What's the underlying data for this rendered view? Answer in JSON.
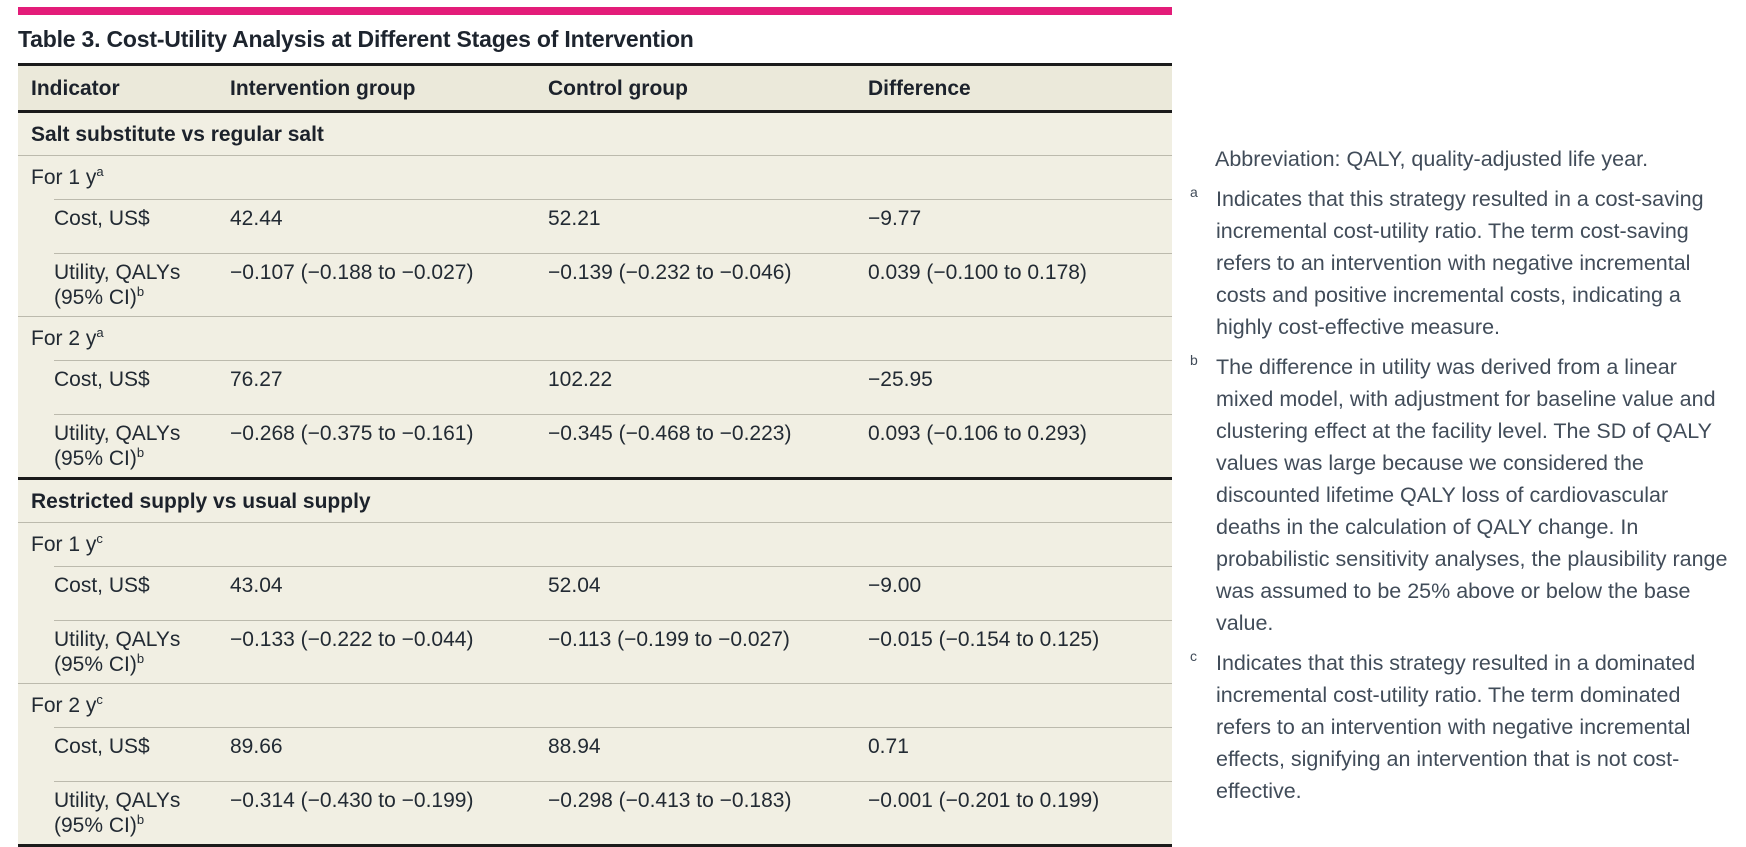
{
  "accent": {
    "bar_color": "#e31c79"
  },
  "table": {
    "title": "Table 3. Cost-Utility Analysis at Different Stages of Intervention",
    "columns": [
      "Indicator",
      "Intervention group",
      "Control group",
      "Difference"
    ],
    "sections": [
      {
        "heading": "Salt substitute vs regular salt",
        "periods": [
          {
            "label": "For 1 y",
            "sup": "a",
            "rows": [
              {
                "label": "Cost, US$",
                "sup": "",
                "values": [
                  "42.44",
                  "52.21",
                  "−9.77"
                ]
              },
              {
                "label": "Utility, QALYs (95% CI)",
                "sup": "b",
                "values": [
                  "−0.107 (−0.188 to −0.027)",
                  "−0.139 (−0.232 to −0.046)",
                  "0.039 (−0.100 to 0.178)"
                ]
              }
            ]
          },
          {
            "label": "For 2 y",
            "sup": "a",
            "rows": [
              {
                "label": "Cost, US$",
                "sup": "",
                "values": [
                  "76.27",
                  "102.22",
                  "−25.95"
                ]
              },
              {
                "label": "Utility, QALYs (95% CI)",
                "sup": "b",
                "values": [
                  "−0.268 (−0.375 to −0.161)",
                  "−0.345 (−0.468 to −0.223)",
                  "0.093 (−0.106 to 0.293)"
                ]
              }
            ]
          }
        ]
      },
      {
        "heading": "Restricted supply vs usual supply",
        "periods": [
          {
            "label": "For 1 y",
            "sup": "c",
            "rows": [
              {
                "label": "Cost, US$",
                "sup": "",
                "values": [
                  "43.04",
                  "52.04",
                  "−9.00"
                ]
              },
              {
                "label": "Utility, QALYs (95% CI)",
                "sup": "b",
                "values": [
                  "−0.133 (−0.222 to −0.044)",
                  "−0.113 (−0.199 to −0.027)",
                  "−0.015 (−0.154 to 0.125)"
                ]
              }
            ]
          },
          {
            "label": "For 2 y",
            "sup": "c",
            "rows": [
              {
                "label": "Cost, US$",
                "sup": "",
                "values": [
                  "89.66",
                  "88.94",
                  "0.71"
                ]
              },
              {
                "label": "Utility, QALYs (95% CI)",
                "sup": "b",
                "values": [
                  "−0.314 (−0.430 to −0.199)",
                  "−0.298 (−0.413 to −0.183)",
                  "−0.001 (−0.201 to 0.199)"
                ]
              }
            ]
          }
        ]
      }
    ]
  },
  "notes": {
    "abbreviation": "Abbreviation: QALY, quality-adjusted life year.",
    "footnotes": [
      {
        "marker": "a",
        "text": "Indicates that this strategy resulted in a cost-saving incremental cost-utility ratio. The term cost-saving refers to an intervention with negative incremental costs and positive incremental costs, indicating a highly cost-effective measure."
      },
      {
        "marker": "b",
        "text": "The difference in utility was derived from a linear mixed model, with adjustment for baseline value and clustering effect at the facility level. The SD of QALY values was large because we considered the discounted lifetime QALY loss of cardiovascular deaths in the calculation of QALY change. In probabilistic sensitivity analyses, the plausibility range was assumed to be 25% above or below the base value."
      },
      {
        "marker": "c",
        "text": "Indicates that this strategy resulted in a dominated incremental cost-utility ratio. The term dominated refers to an intervention with negative incremental effects, signifying an intervention that is not cost-effective."
      }
    ]
  }
}
